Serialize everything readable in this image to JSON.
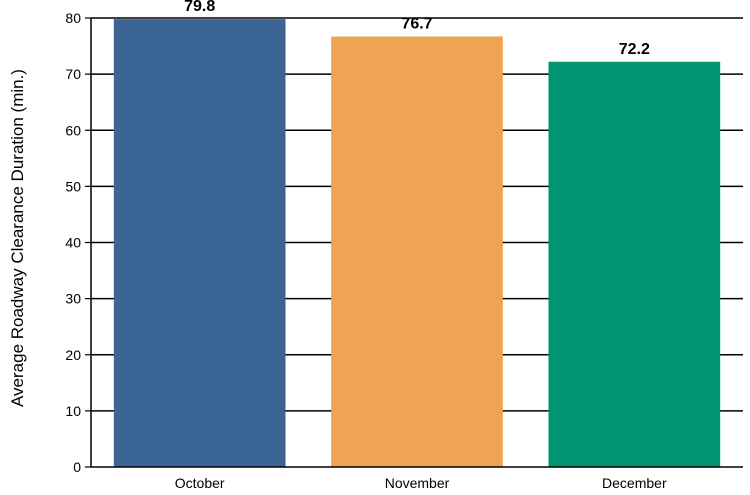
{
  "chart_data": {
    "type": "bar",
    "title": "",
    "xlabel": "",
    "ylabel": "Average Roadway Clearance Duration (min.)",
    "categories": [
      "October",
      "November",
      "December"
    ],
    "values": [
      79.8,
      76.7,
      72.2
    ],
    "value_labels": [
      "79.8",
      "76.7",
      "72.2"
    ],
    "colors": [
      "#3a6594",
      "#eea454",
      "#009473"
    ],
    "ylim": [
      0,
      80
    ],
    "yticks": [
      0,
      10,
      20,
      30,
      40,
      50,
      60,
      70,
      80
    ],
    "grid": true,
    "legend": false
  }
}
